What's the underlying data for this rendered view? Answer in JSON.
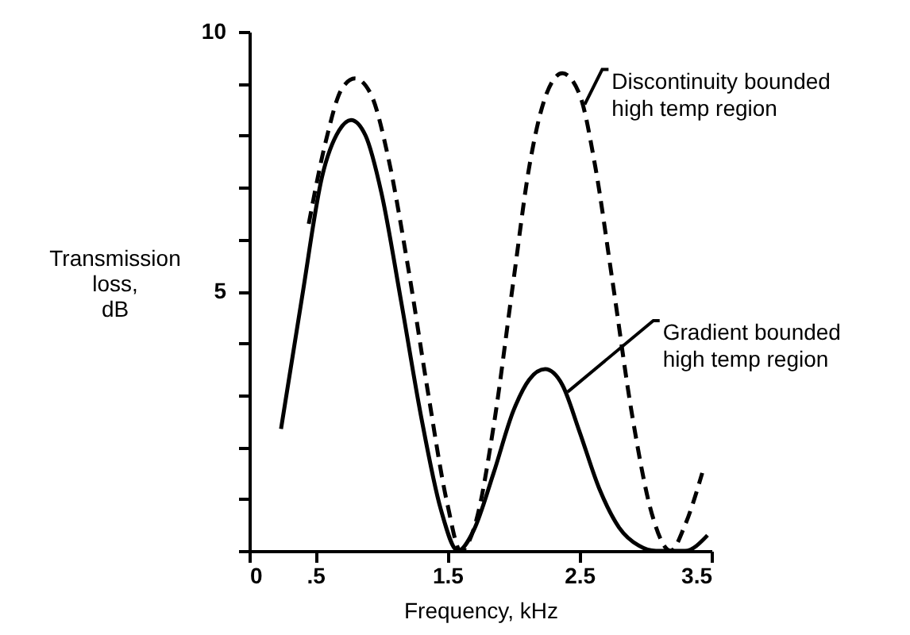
{
  "chart_data": {
    "type": "line",
    "xlabel": "Frequency, kHz",
    "ylabel": "Transmission\nloss,\ndB",
    "xlim": [
      0,
      3.5
    ],
    "ylim": [
      0,
      10
    ],
    "xticks": [
      0,
      {
        "value": 0.5,
        "label": ".5"
      },
      1.5,
      2.5,
      3.5
    ],
    "yticks": [
      {
        "value": 0,
        "label": null
      },
      {
        "value": 1,
        "label": null
      },
      {
        "value": 2,
        "label": null
      },
      {
        "value": 3,
        "label": null
      },
      {
        "value": 4,
        "label": null
      },
      5,
      {
        "value": 6,
        "label": null
      },
      {
        "value": 7,
        "label": null
      },
      {
        "value": 8,
        "label": null
      },
      {
        "value": 9,
        "label": null
      },
      10
    ],
    "grid": false,
    "marker": "none",
    "series": [
      {
        "color": "#000000",
        "line_style": "solid",
        "x": [
          0.24,
          0.4,
          0.55,
          0.68,
          0.77,
          0.88,
          1.0,
          1.15,
          1.3,
          1.45,
          1.58,
          1.7,
          1.85,
          2.0,
          2.12,
          2.24,
          2.37,
          2.5,
          2.65,
          2.8,
          2.95,
          3.08,
          3.18,
          3.3,
          3.47
        ],
        "values": [
          2.35,
          4.9,
          7.2,
          8.1,
          8.3,
          8.0,
          6.9,
          4.8,
          2.6,
          0.8,
          0.0,
          0.4,
          1.5,
          2.7,
          3.3,
          3.5,
          3.2,
          2.3,
          1.2,
          0.45,
          0.1,
          0.0,
          0.0,
          0.0,
          0.3
        ]
      },
      {
        "color": "#000000",
        "line_style": "dashed",
        "x": [
          0.45,
          0.58,
          0.7,
          0.8,
          0.92,
          1.05,
          1.2,
          1.35,
          1.5,
          1.6,
          1.72,
          1.85,
          2.0,
          2.12,
          2.25,
          2.37,
          2.5,
          2.62,
          2.75,
          2.9,
          3.05,
          3.19,
          3.3,
          3.43
        ],
        "values": [
          6.3,
          7.9,
          8.9,
          9.1,
          8.8,
          7.6,
          5.5,
          3.1,
          0.9,
          0.0,
          0.6,
          2.4,
          5.2,
          7.4,
          8.8,
          9.2,
          8.8,
          7.4,
          5.2,
          2.6,
          0.7,
          0.0,
          0.5,
          1.5
        ]
      }
    ],
    "annotations": [
      {
        "text": "Discontinuity bounded\nhigh temp region",
        "x": 2.54,
        "y": 8.6
      },
      {
        "text": "Gradient bounded\nhigh temp region",
        "x": 2.41,
        "y": 3.06
      }
    ]
  }
}
